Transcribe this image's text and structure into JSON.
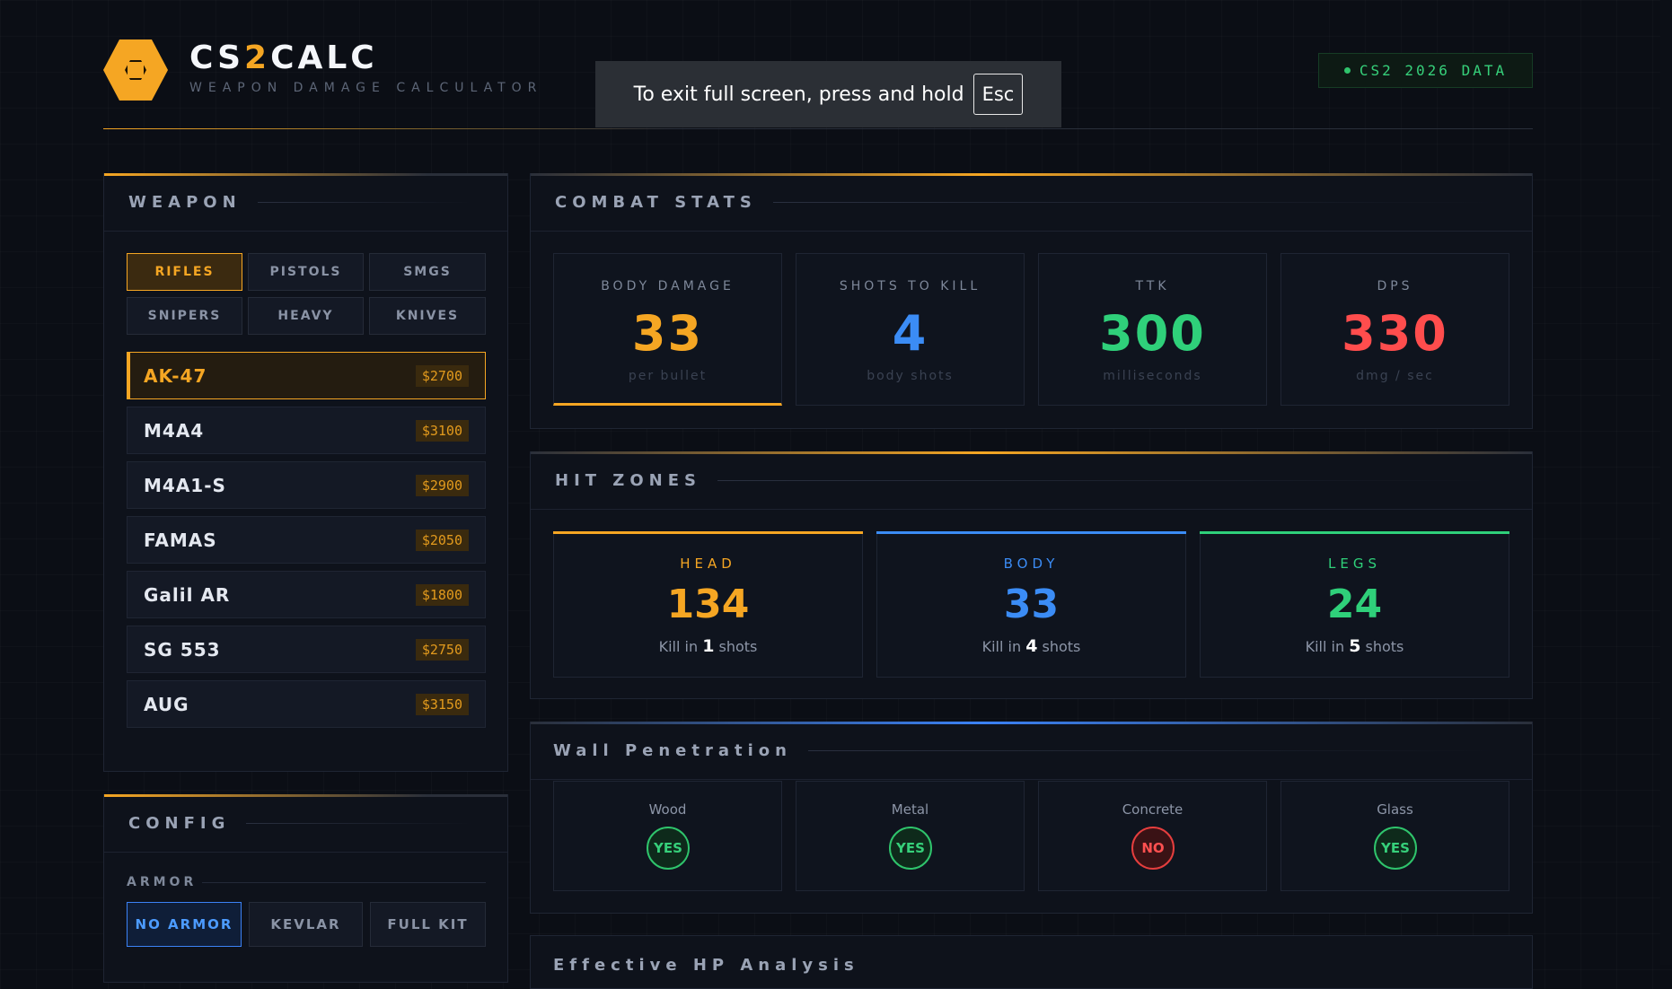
{
  "header": {
    "brand_prefix": "CS",
    "brand_accent": "2",
    "brand_suffix": "CALC",
    "subtitle": "WEAPON DAMAGE CALCULATOR",
    "badge": "CS2 2026 DATA"
  },
  "fullscreen_notice": {
    "text": "To exit full screen, press and hold",
    "key": "Esc"
  },
  "weapon_panel": {
    "title": "WEAPON",
    "categories": [
      {
        "label": "RIFLES",
        "active": true
      },
      {
        "label": "PISTOLS",
        "active": false
      },
      {
        "label": "SMGS",
        "active": false
      },
      {
        "label": "SNIPERS",
        "active": false
      },
      {
        "label": "HEAVY",
        "active": false
      },
      {
        "label": "KNIVES",
        "active": false
      }
    ],
    "weapons": [
      {
        "name": "AK-47",
        "price": "$2700",
        "active": true
      },
      {
        "name": "M4A4",
        "price": "$3100",
        "active": false
      },
      {
        "name": "M4A1-S",
        "price": "$2900",
        "active": false
      },
      {
        "name": "FAMAS",
        "price": "$2050",
        "active": false
      },
      {
        "name": "Galil AR",
        "price": "$1800",
        "active": false
      },
      {
        "name": "SG 553",
        "price": "$2750",
        "active": false
      },
      {
        "name": "AUG",
        "price": "$3150",
        "active": false
      }
    ]
  },
  "config_panel": {
    "title": "CONFIG",
    "armor_label": "ARMOR",
    "armor_options": [
      {
        "label": "NO ARMOR",
        "active": true
      },
      {
        "label": "KEVLAR",
        "active": false
      },
      {
        "label": "FULL KIT",
        "active": false
      }
    ]
  },
  "combat_stats": {
    "title": "COMBAT STATS",
    "cards": [
      {
        "label": "BODY DAMAGE",
        "value": "33",
        "sub": "per bullet",
        "color": "#f5a623"
      },
      {
        "label": "SHOTS TO KILL",
        "value": "4",
        "sub": "body shots",
        "color": "#3b8cf5"
      },
      {
        "label": "TTK",
        "value": "300",
        "sub": "milliseconds",
        "color": "#2fd07a"
      },
      {
        "label": "DPS",
        "value": "330",
        "sub": "dmg / sec",
        "color": "#ff4d4d"
      }
    ]
  },
  "hit_zones": {
    "title": "HIT ZONES",
    "zones": [
      {
        "label": "HEAD",
        "value": "134",
        "kill_prefix": "Kill in",
        "shots": "1",
        "kill_suffix": "shots",
        "color": "#f5a623"
      },
      {
        "label": "BODY",
        "value": "33",
        "kill_prefix": "Kill in",
        "shots": "4",
        "kill_suffix": "shots",
        "color": "#3b8cf5"
      },
      {
        "label": "LEGS",
        "value": "24",
        "kill_prefix": "Kill in",
        "shots": "5",
        "kill_suffix": "shots",
        "color": "#2fd07a"
      }
    ]
  },
  "wall_penetration": {
    "title": "Wall Penetration",
    "materials": [
      {
        "label": "Wood",
        "result": "YES"
      },
      {
        "label": "Metal",
        "result": "YES"
      },
      {
        "label": "Concrete",
        "result": "NO"
      },
      {
        "label": "Glass",
        "result": "YES"
      }
    ]
  },
  "hp_panel": {
    "title": "Effective HP Analysis"
  }
}
